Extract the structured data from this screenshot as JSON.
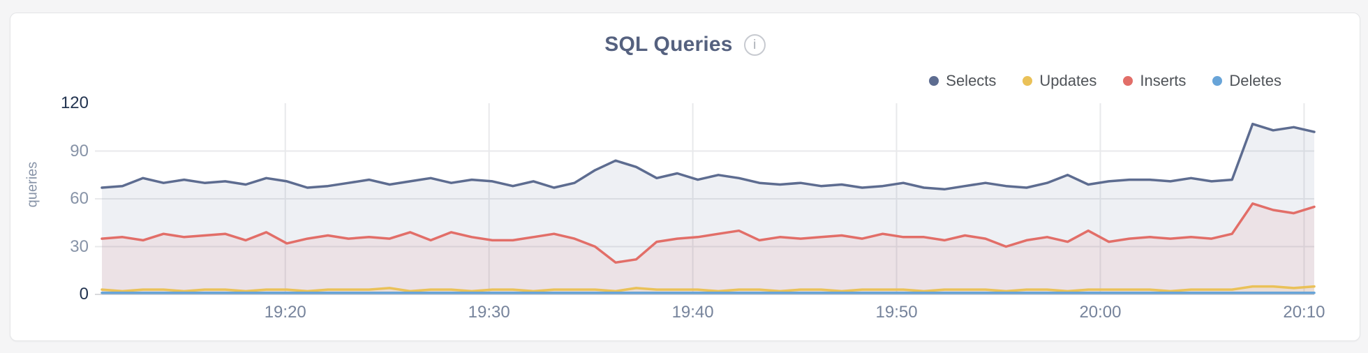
{
  "page": {
    "background": "#f5f5f6"
  },
  "card": {
    "background": "#ffffff",
    "border_color": "#e4e5e7"
  },
  "header": {
    "title": "SQL Queries",
    "info_icon_glyph": "i"
  },
  "colors": {
    "title_text": "#55617f",
    "legend_text": "#4f5358",
    "axis_label_strong": "#233450",
    "axis_label_weak": "#8793a7",
    "x_axis_label": "#76839b",
    "gridline": "#e8e9eb",
    "baseline": "#d9dadd",
    "selects": "#5d6c90",
    "updates": "#eac158",
    "inserts": "#e26e68",
    "deletes": "#68a4d8"
  },
  "chart_data": {
    "type": "area",
    "title": "SQL Queries",
    "xlabel": "",
    "ylabel": "queries",
    "ylim": [
      0,
      120
    ],
    "y_ticks": [
      0,
      30,
      60,
      90,
      120
    ],
    "y_ticks_strong": [
      0,
      120
    ],
    "grid": true,
    "legend_position": "top-right",
    "x_start": "19:11",
    "x_end": "20:10",
    "x_interval_minutes": 1,
    "x_tick_labels": [
      "19:20",
      "19:30",
      "19:40",
      "19:50",
      "20:00",
      "20:10"
    ],
    "series": [
      {
        "name": "Selects",
        "color": "#5d6c90",
        "fill": "rgba(93,108,144,0.10)",
        "values": [
          67,
          68,
          73,
          70,
          72,
          70,
          71,
          69,
          73,
          71,
          67,
          68,
          70,
          72,
          69,
          71,
          73,
          70,
          72,
          71,
          68,
          71,
          67,
          70,
          78,
          84,
          80,
          73,
          76,
          72,
          75,
          73,
          70,
          69,
          70,
          68,
          69,
          67,
          68,
          70,
          67,
          66,
          68,
          70,
          68,
          67,
          70,
          75,
          69,
          71,
          72,
          72,
          71,
          73,
          71,
          72,
          107,
          103,
          105,
          102
        ]
      },
      {
        "name": "Updates",
        "color": "#eac158",
        "fill": "rgba(234,193,88,0.12)",
        "values": [
          3,
          2,
          3,
          3,
          2,
          3,
          3,
          2,
          3,
          3,
          2,
          3,
          3,
          3,
          4,
          2,
          3,
          3,
          2,
          3,
          3,
          2,
          3,
          3,
          3,
          2,
          4,
          3,
          3,
          3,
          2,
          3,
          3,
          2,
          3,
          3,
          2,
          3,
          3,
          3,
          2,
          3,
          3,
          3,
          2,
          3,
          3,
          2,
          3,
          3,
          3,
          3,
          2,
          3,
          3,
          3,
          5,
          5,
          4,
          5
        ]
      },
      {
        "name": "Inserts",
        "color": "#e26e68",
        "fill": "rgba(226,110,104,0.10)",
        "values": [
          35,
          36,
          34,
          38,
          36,
          37,
          38,
          34,
          39,
          32,
          35,
          37,
          35,
          36,
          35,
          39,
          34,
          39,
          36,
          34,
          34,
          36,
          38,
          35,
          30,
          20,
          22,
          33,
          35,
          36,
          38,
          40,
          34,
          36,
          35,
          36,
          37,
          35,
          38,
          36,
          36,
          34,
          37,
          35,
          30,
          34,
          36,
          33,
          40,
          33,
          35,
          36,
          35,
          36,
          35,
          38,
          57,
          53,
          51,
          55
        ]
      },
      {
        "name": "Deletes",
        "color": "#68a4d8",
        "fill": "rgba(104,164,216,0.15)",
        "values": [
          1,
          1,
          1,
          1,
          1,
          1,
          1,
          1,
          1,
          1,
          1,
          1,
          1,
          1,
          1,
          1,
          1,
          1,
          1,
          1,
          1,
          1,
          1,
          1,
          1,
          1,
          1,
          1,
          1,
          1,
          1,
          1,
          1,
          1,
          1,
          1,
          1,
          1,
          1,
          1,
          1,
          1,
          1,
          1,
          1,
          1,
          1,
          1,
          1,
          1,
          1,
          1,
          1,
          1,
          1,
          1,
          1,
          1,
          1,
          1
        ]
      }
    ]
  }
}
